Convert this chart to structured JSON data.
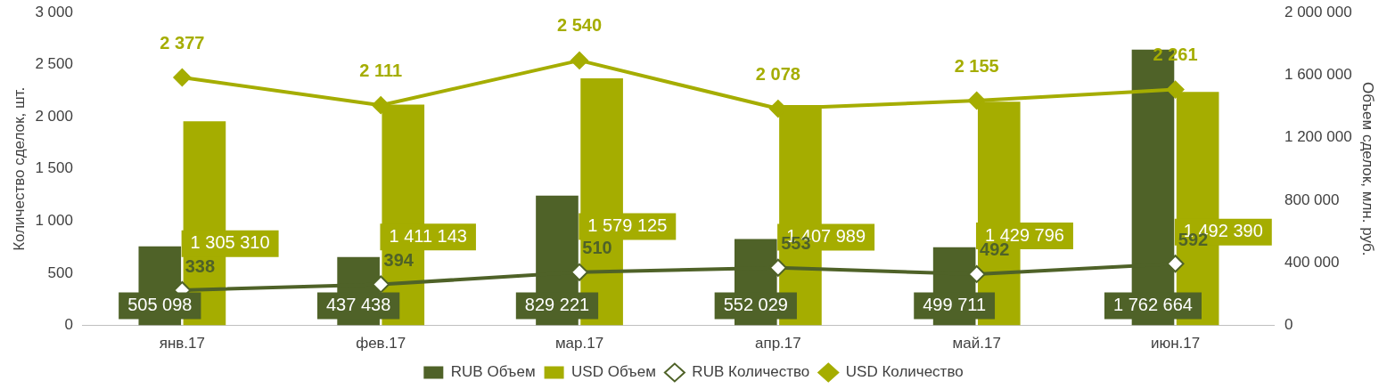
{
  "chart_data": {
    "type": "bar",
    "ylabel": "Количество сделок, шт.",
    "y2label": "Объем сделок, млн. руб.",
    "categories": [
      "янв.17",
      "фев.17",
      "мар.17",
      "апр.17",
      "май.17",
      "июн.17"
    ],
    "series": [
      {
        "name": "RUB Объем",
        "axis": "y2",
        "color": "#4f6228",
        "values": [
          505098,
          437438,
          829221,
          552029,
          499711,
          1762664
        ],
        "value_labels": [
          "505 098",
          "437 438",
          "829 221",
          "552 029",
          "499 711",
          "1 762 664"
        ]
      },
      {
        "name": "USD Объем",
        "axis": "y2",
        "color": "#a5ad00",
        "values": [
          1305310,
          1411143,
          1579125,
          1407989,
          1429796,
          1492390
        ],
        "value_labels": [
          "1 305 310",
          "1 411 143",
          "1 579 125",
          "1 407 989",
          "1 429 796",
          "1 492 390"
        ]
      },
      {
        "name": "RUB Количество",
        "type": "line",
        "color": "#4f6228",
        "values": [
          338,
          394,
          510,
          553,
          492,
          592
        ],
        "value_labels": [
          "338",
          "394",
          "510",
          "553",
          "492",
          "592"
        ]
      },
      {
        "name": "USD Количество",
        "type": "line",
        "color": "#a5ad00",
        "values": [
          2377,
          2111,
          2540,
          2078,
          2155,
          2261
        ],
        "value_labels": [
          "2 377",
          "2 111",
          "2 540",
          "2 078",
          "2 155",
          "2 261"
        ]
      }
    ],
    "ylim": [
      0,
      3000
    ],
    "yticks": [
      0,
      {
        "value": 500,
        "label": "500"
      },
      {
        "value": 1000,
        "label": "1 000"
      },
      {
        "value": 1500,
        "label": "1 500"
      },
      {
        "value": 2000,
        "label": "2 000"
      },
      {
        "value": 2500,
        "label": "2 500"
      },
      {
        "value": 3000,
        "label": "3 000"
      }
    ],
    "y2lim": [
      0,
      2000000
    ],
    "y2ticks": [
      0,
      {
        "value": 400000,
        "label": "400 000"
      },
      {
        "value": 800000,
        "label": "800 000"
      },
      {
        "value": 1200000,
        "label": "1 200 000"
      },
      {
        "value": 1600000,
        "label": "1 600 000"
      },
      {
        "value": 2000000,
        "label": "2 000 000"
      }
    ],
    "marker": "diamond",
    "legend": "bottom"
  }
}
